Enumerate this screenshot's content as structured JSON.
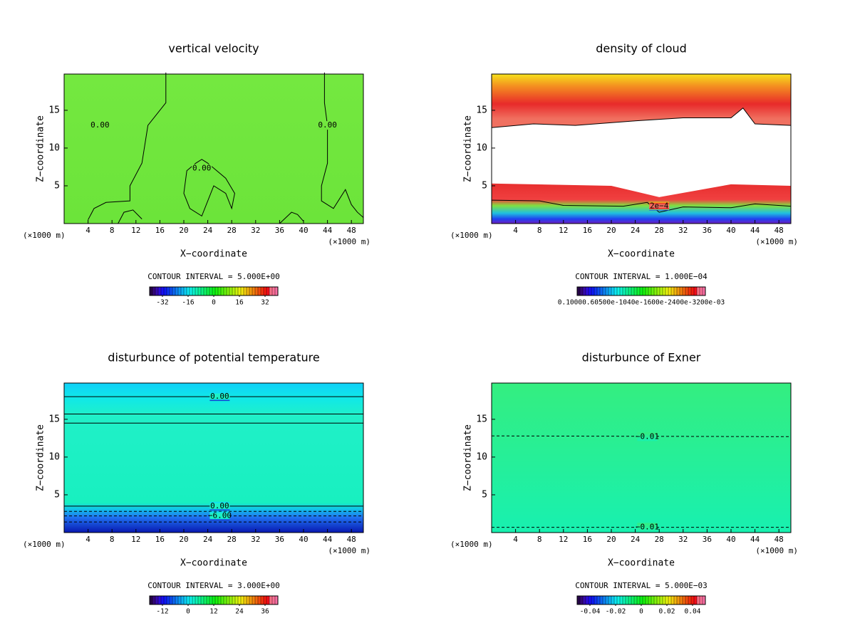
{
  "chart_data": [
    {
      "type": "contour",
      "title": "vertical velocity",
      "xlabel": "X−coordinate",
      "ylabel": "Z−coordinate",
      "x_unit": "(×1000 m)",
      "xlim": [
        0,
        50
      ],
      "ylim": [
        0,
        19.8
      ],
      "xticks": [
        4,
        8,
        12,
        16,
        20,
        24,
        28,
        32,
        36,
        40,
        44,
        48
      ],
      "yticks": [
        5,
        10,
        15
      ],
      "contour_interval": "CONTOUR INTERVAL = 5.000E+00",
      "clim": [
        -40,
        40
      ],
      "colorbar_ticks": [
        -32,
        -16,
        0,
        16,
        32
      ],
      "annotations": [
        "0.00",
        "0.00",
        "0.00"
      ]
    },
    {
      "type": "contour",
      "title": "density of cloud",
      "xlabel": "X−coordinate",
      "ylabel": "Z−coordinate",
      "x_unit": "(×1000 m)",
      "xlim": [
        0,
        50
      ],
      "ylim": [
        0,
        19.8
      ],
      "xticks": [
        4,
        8,
        12,
        16,
        20,
        24,
        28,
        32,
        36,
        40,
        44,
        48
      ],
      "yticks": [
        5,
        10,
        15
      ],
      "contour_interval": "CONTOUR INTERVAL = 1.000E−04",
      "colorbar_text": "0.10000.60500e-1040e-1600e-2400e-3200e-03",
      "annotations": [
        "2e−4"
      ]
    },
    {
      "type": "contour",
      "title": "disturbunce of potential temperature",
      "xlabel": "X−coordinate",
      "ylabel": "Z−coordinate",
      "x_unit": "(×1000 m)",
      "xlim": [
        0,
        50
      ],
      "ylim": [
        0,
        19.8
      ],
      "xticks": [
        4,
        8,
        12,
        16,
        20,
        24,
        28,
        32,
        36,
        40,
        44,
        48
      ],
      "yticks": [
        5,
        10,
        15
      ],
      "contour_interval": "CONTOUR INTERVAL = 3.000E+00",
      "clim": [
        -18,
        42
      ],
      "colorbar_ticks": [
        -12,
        0,
        12,
        24,
        36
      ],
      "annotations": [
        "0.00",
        "0.00",
        "−6.00"
      ]
    },
    {
      "type": "contour",
      "title": "disturbunce of Exner",
      "xlabel": "X−coordinate",
      "ylabel": "Z−coordinate",
      "x_unit": "(×1000 m)",
      "xlim": [
        0,
        50
      ],
      "ylim": [
        0,
        19.8
      ],
      "xticks": [
        4,
        8,
        12,
        16,
        20,
        24,
        28,
        32,
        36,
        40,
        44,
        48
      ],
      "yticks": [
        5,
        10,
        15
      ],
      "contour_interval": "CONTOUR INTERVAL = 5.000E−03",
      "clim": [
        -0.05,
        0.05
      ],
      "colorbar_ticks": [
        -0.04,
        -0.02,
        0,
        0.02,
        0.04
      ],
      "annotations": [
        "−0.01",
        "−0.01"
      ]
    }
  ]
}
